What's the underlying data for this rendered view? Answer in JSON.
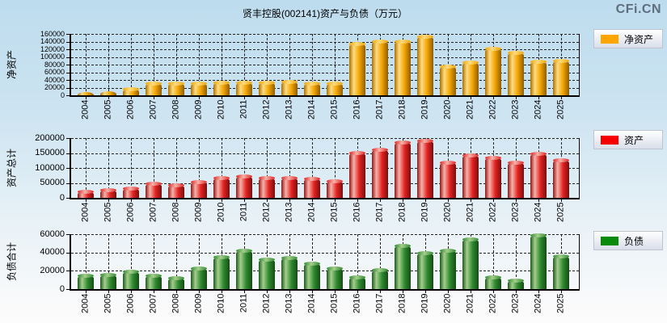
{
  "page_title": "贤丰控股(002141)资产与负债（万元）",
  "watermark": "CFi.CN",
  "chart_data": [
    {
      "type": "bar",
      "name": "net-assets",
      "title": "净资产",
      "ylabel": "净资产",
      "legend": "净资产",
      "legend_position": "right",
      "legend_color": "#FFA500",
      "bar_colors": [
        "#AA7000",
        "#FFDC82",
        "#F2A400",
        "#8F5E00"
      ],
      "grid": true,
      "ylim": [
        0,
        160000
      ],
      "ytick_step": 20000,
      "categories": [
        "2004",
        "2005",
        "2006",
        "2007",
        "2008",
        "2009",
        "2010",
        "2011",
        "2012",
        "2013",
        "2014",
        "2015",
        "2016",
        "2017",
        "2018",
        "2019",
        "2020",
        "2021",
        "2022",
        "2023",
        "2024",
        "2025"
      ],
      "values": [
        8500,
        11000,
        16000,
        31500,
        31000,
        31000,
        34000,
        34000,
        33000,
        36500,
        32000,
        32000,
        135000,
        142000,
        140000,
        154000,
        76000,
        86000,
        123000,
        112000,
        88000,
        90000
      ]
    },
    {
      "type": "bar",
      "name": "total-assets",
      "title": "资产总计",
      "ylabel": "资产总计",
      "legend": "资产",
      "legend_position": "right",
      "legend_color": "#F50000",
      "bar_colors": [
        "#8F1616",
        "#F7B3AA",
        "#E32222",
        "#7A0E0E"
      ],
      "grid": true,
      "ylim": [
        0,
        200000
      ],
      "ytick_step": 50000,
      "categories": [
        "2004",
        "2005",
        "2006",
        "2007",
        "2008",
        "2009",
        "2010",
        "2011",
        "2012",
        "2013",
        "2014",
        "2015",
        "2016",
        "2017",
        "2018",
        "2019",
        "2020",
        "2021",
        "2022",
        "2023",
        "2024",
        "2025"
      ],
      "values": [
        22000,
        27000,
        33000,
        48000,
        44000,
        54000,
        68000,
        74000,
        68000,
        68000,
        64000,
        57000,
        150000,
        163000,
        186000,
        193000,
        120000,
        143000,
        136000,
        120000,
        149000,
        126000
      ]
    },
    {
      "type": "bar",
      "name": "total-liabilities",
      "title": "负债合计",
      "ylabel": "负债合计",
      "legend": "负债",
      "legend_position": "right",
      "legend_color": "#0A8A0A",
      "bar_colors": [
        "#1C5A1C",
        "#A6CE8E",
        "#2F8A2F",
        "#154D15"
      ],
      "grid": true,
      "ylim": [
        0,
        60000
      ],
      "ytick_step": 20000,
      "categories": [
        "2004",
        "2005",
        "2006",
        "2007",
        "2008",
        "2009",
        "2010",
        "2011",
        "2012",
        "2013",
        "2014",
        "2015",
        "2016",
        "2017",
        "2018",
        "2019",
        "2020",
        "2021",
        "2022",
        "2023",
        "2024",
        "2025"
      ],
      "values": [
        15000,
        16000,
        19500,
        15000,
        12500,
        22500,
        35000,
        42000,
        33000,
        34000,
        28500,
        22500,
        13500,
        21000,
        48000,
        40000,
        42500,
        55000,
        13000,
        10000,
        59500,
        36500
      ]
    }
  ]
}
